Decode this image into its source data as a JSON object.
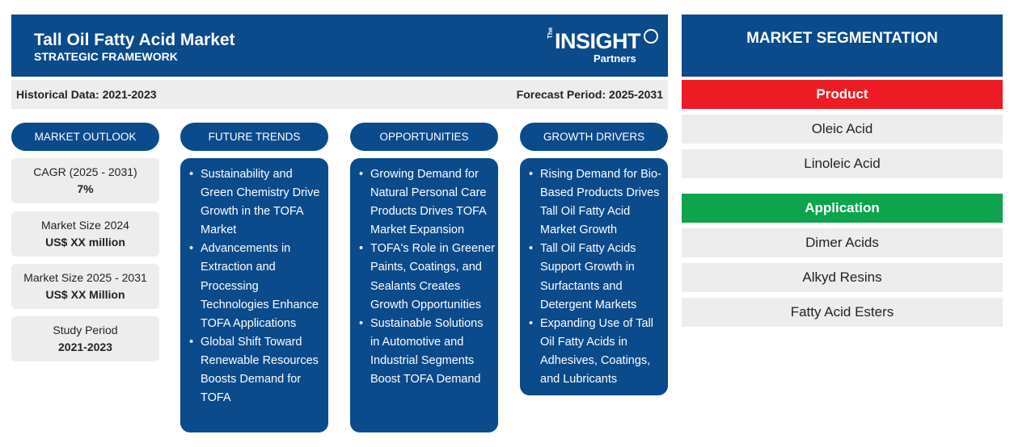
{
  "header": {
    "title": "Tall Oil Fatty Acid Market",
    "subtitle": "STRATEGIC FRAMEWORK",
    "logo": {
      "the": "The",
      "insight": "INSIGHT",
      "partners": "Partners"
    }
  },
  "periods": {
    "historical": "Historical Data: 2021-2023",
    "forecast": "Forecast Period: 2025-2031"
  },
  "columns": {
    "outlook": "MARKET OUTLOOK",
    "trends": "FUTURE TRENDS",
    "opportunities": "OPPORTUNITIES",
    "drivers": "GROWTH DRIVERS"
  },
  "outlook": [
    {
      "label": "CAGR (2025 - 2031)",
      "value": "7%"
    },
    {
      "label": "Market Size 2024",
      "value": "US$ XX million"
    },
    {
      "label": "Market Size 2025 - 2031",
      "value": "US$ XX Million"
    },
    {
      "label": "Study Period",
      "value": "2021-2023"
    }
  ],
  "trends": [
    "Sustainability and Green Chemistry Drive Growth in the TOFA Market",
    "Advancements in Extraction and Processing Technologies Enhance TOFA Applications",
    "Global Shift Toward Renewable Resources Boosts Demand for TOFA"
  ],
  "opportunities": [
    "Growing Demand for Natural Personal Care Products Drives TOFA Market Expansion",
    "TOFA's Role in Greener Paints, Coatings, and Sealants Creates Growth Opportunities",
    "Sustainable Solutions in Automotive and Industrial Segments Boost TOFA Demand"
  ],
  "drivers": [
    "Rising Demand for Bio-Based Products Drives Tall Oil Fatty Acid Market Growth",
    "Tall Oil Fatty Acids Support Growth in Surfactants and Detergent Markets",
    "Expanding Use of Tall Oil Fatty Acids in Adhesives, Coatings, and Lubricants"
  ],
  "segmentation": {
    "title": "MARKET SEGMENTATION",
    "product": {
      "label": "Product",
      "color": "#ed1c24",
      "items": [
        "Oleic Acid",
        "Linoleic Acid"
      ]
    },
    "application": {
      "label": "Application",
      "color": "#0ea44b",
      "items": [
        "Dimer Acids",
        "Alkyd Resins",
        "Fatty Acid Esters"
      ]
    }
  },
  "colors": {
    "primary": "#0b4a8b",
    "panel": "#ededed"
  }
}
